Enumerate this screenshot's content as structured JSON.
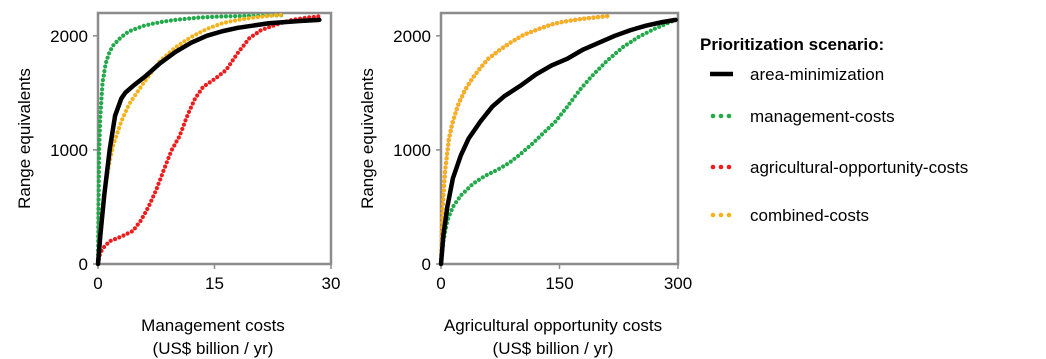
{
  "legend": {
    "title": "Prioritization scenario:",
    "placement": "right",
    "entries": [
      {
        "name": "area-minimization",
        "color": "#000000",
        "style": "solid"
      },
      {
        "name": "management-costs",
        "color": "#22aa4a",
        "style": "dotted"
      },
      {
        "name": "agricultural-opportunity-costs",
        "color": "#ee1c1c",
        "style": "dotted"
      },
      {
        "name": "combined-costs",
        "color": "#f5b21a",
        "style": "dotted"
      }
    ]
  },
  "chart_data": [
    {
      "type": "line",
      "xlabel": [
        "Management costs",
        "(US$ billion / yr)"
      ],
      "ylabel": "Range equivalents",
      "xlim": [
        0,
        30
      ],
      "ylim": [
        0,
        2200
      ],
      "xticks": [
        "0",
        "15",
        "30"
      ],
      "yticks": [
        "0",
        "1000",
        "2000"
      ],
      "grid": false,
      "series": [
        {
          "name": "area-minimization",
          "color": "#000000",
          "x": [
            0,
            0.3,
            0.8,
            1.5,
            2.2,
            3,
            3.5,
            4.5,
            6,
            8,
            10,
            12,
            14,
            16,
            18,
            20,
            22,
            24,
            26,
            28.5
          ],
          "y": [
            0,
            250,
            600,
            1000,
            1300,
            1450,
            1500,
            1560,
            1640,
            1760,
            1860,
            1940,
            2000,
            2040,
            2070,
            2090,
            2110,
            2120,
            2130,
            2140
          ]
        },
        {
          "name": "management-costs",
          "color": "#22aa4a",
          "x": [
            0,
            0.05,
            0.15,
            0.3,
            0.6,
            1,
            1.5,
            2,
            3,
            4,
            6,
            8,
            10,
            13,
            16,
            20,
            24
          ],
          "y": [
            0,
            400,
            1000,
            1300,
            1600,
            1760,
            1860,
            1920,
            1990,
            2040,
            2090,
            2120,
            2140,
            2160,
            2170,
            2175,
            2180
          ]
        },
        {
          "name": "agricultural-opportunity-costs",
          "color": "#ee1c1c",
          "x": [
            0,
            0.3,
            0.8,
            1.5,
            3,
            4.5,
            5.5,
            6.5,
            7.5,
            8.5,
            9.5,
            10.5,
            11.5,
            12.5,
            13.5,
            15,
            16.5,
            18,
            19.5,
            21,
            23,
            25,
            27,
            28.5
          ],
          "y": [
            0,
            100,
            150,
            200,
            240,
            290,
            380,
            500,
            650,
            830,
            1000,
            1120,
            1300,
            1450,
            1550,
            1620,
            1700,
            1850,
            1980,
            2050,
            2100,
            2140,
            2160,
            2170
          ]
        },
        {
          "name": "combined-costs",
          "color": "#f5b21a",
          "x": [
            0,
            0.2,
            0.5,
            1,
            1.5,
            2,
            2.5,
            3,
            4,
            5,
            6,
            8,
            10,
            12,
            14,
            16,
            18,
            20,
            22,
            24
          ],
          "y": [
            0,
            150,
            400,
            700,
            900,
            1050,
            1150,
            1250,
            1400,
            1500,
            1600,
            1780,
            1900,
            1990,
            2060,
            2110,
            2140,
            2160,
            2175,
            2185
          ]
        }
      ]
    },
    {
      "type": "line",
      "xlabel": [
        "Agricultural opportunity costs",
        "(US$ billion / yr)"
      ],
      "ylabel": "Range equivalents",
      "xlim": [
        0,
        300
      ],
      "ylim": [
        0,
        2200
      ],
      "xticks": [
        "0",
        "150",
        "300"
      ],
      "yticks": [
        "0",
        "1000",
        "2000"
      ],
      "grid": false,
      "series": [
        {
          "name": "area-minimization",
          "color": "#000000",
          "x": [
            0,
            3,
            8,
            15,
            25,
            35,
            50,
            65,
            80,
            100,
            120,
            140,
            160,
            180,
            200,
            220,
            240,
            260,
            280,
            297
          ],
          "y": [
            0,
            250,
            500,
            750,
            950,
            1100,
            1250,
            1380,
            1470,
            1560,
            1660,
            1740,
            1800,
            1880,
            1940,
            2000,
            2050,
            2090,
            2120,
            2140
          ]
        },
        {
          "name": "management-costs",
          "color": "#22aa4a",
          "x": [
            0,
            3,
            8,
            15,
            25,
            40,
            55,
            70,
            85,
            100,
            115,
            130,
            145,
            160,
            175,
            190,
            210,
            230,
            250,
            270,
            290,
            297
          ],
          "y": [
            0,
            200,
            380,
            500,
            600,
            700,
            770,
            820,
            880,
            960,
            1050,
            1150,
            1250,
            1380,
            1520,
            1640,
            1780,
            1900,
            1990,
            2060,
            2120,
            2140
          ]
        },
        {
          "name": "agricultural-opportunity-costs",
          "color": "#ee1c1c",
          "x": [
            0,
            2,
            5,
            10,
            15,
            22,
            30,
            40,
            50,
            60,
            75,
            90,
            105,
            120,
            140,
            160,
            180,
            200,
            215
          ],
          "y": [
            0,
            500,
            800,
            1100,
            1250,
            1400,
            1520,
            1630,
            1720,
            1800,
            1880,
            1950,
            2010,
            2050,
            2100,
            2130,
            2150,
            2165,
            2175
          ]
        },
        {
          "name": "combined-costs",
          "color": "#f5b21a",
          "x": [
            0,
            2,
            5,
            10,
            15,
            22,
            30,
            40,
            50,
            60,
            75,
            90,
            105,
            120,
            140,
            160,
            180,
            200,
            215
          ],
          "y": [
            0,
            500,
            800,
            1100,
            1250,
            1400,
            1520,
            1630,
            1720,
            1800,
            1880,
            1950,
            2010,
            2050,
            2100,
            2130,
            2150,
            2165,
            2175
          ]
        }
      ]
    }
  ]
}
